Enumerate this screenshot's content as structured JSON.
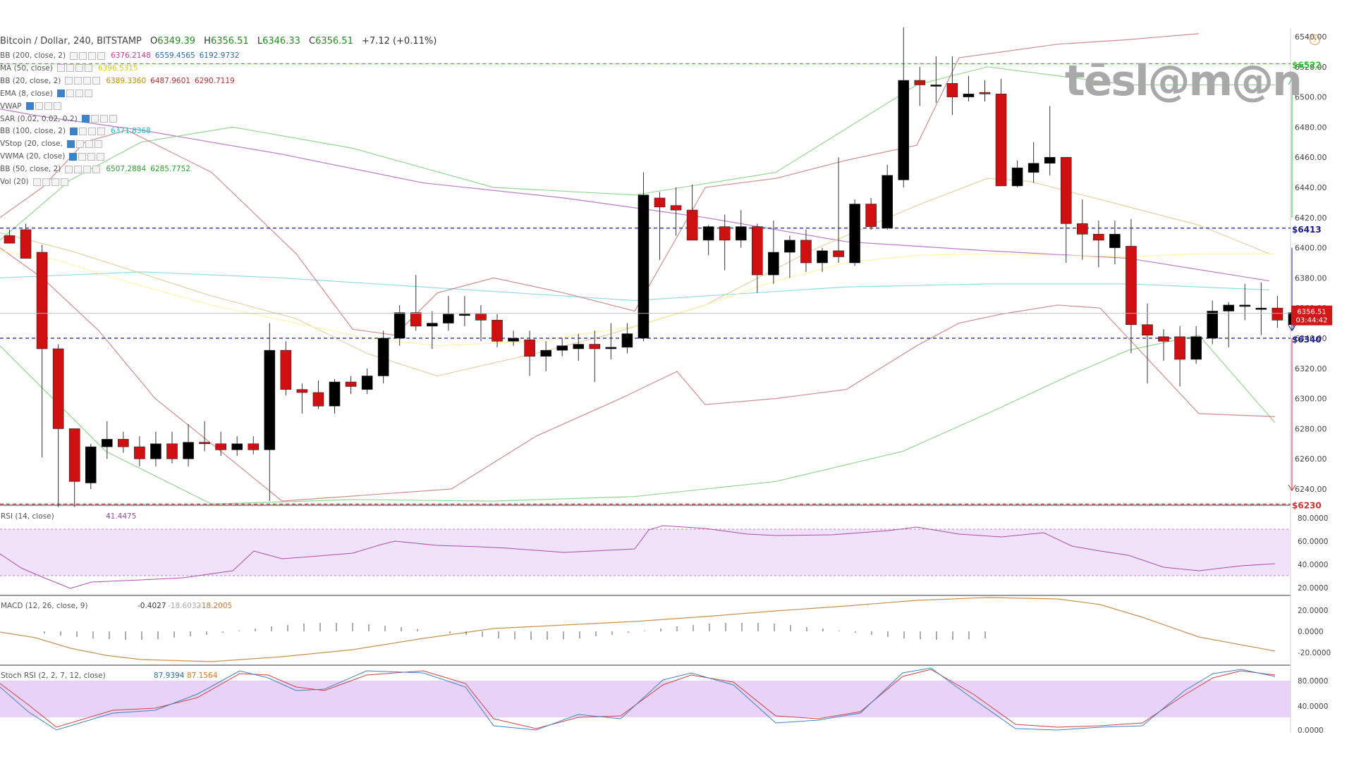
{
  "header": {
    "symbol": "Bitcoin / Dollar, 240, BITSTAMP",
    "open_label": "O",
    "open": "6349.39",
    "high_label": "H",
    "high": "6356.51",
    "low_label": "L",
    "low": "6346.33",
    "close_label": "C",
    "close": "6356.51",
    "change": "+7.12 (+0.11%)"
  },
  "indicators": [
    {
      "name": "BB (200, close, 2)",
      "values": [
        "6376.2148",
        "6559.4565",
        "6192.9732"
      ],
      "colors": [
        "#c03a8f",
        "#2d6aa8",
        "#2d6aa8"
      ]
    },
    {
      "name": "MA (50, close)",
      "values": [
        "6396.5315"
      ],
      "colors": [
        "#d9d000"
      ]
    },
    {
      "name": "BB (20, close, 2)",
      "values": [
        "6389.3360",
        "6487.9601",
        "6290.7119"
      ],
      "colors": [
        "#c98a00",
        "#b03030",
        "#b03030"
      ]
    },
    {
      "name": "EMA (8, close)",
      "values": [],
      "colors": []
    },
    {
      "name": "VWAP",
      "values": [],
      "colors": []
    },
    {
      "name": "SAR (0.02, 0.02, 0.2)",
      "values": [],
      "colors": []
    },
    {
      "name": "BB (100, close, 2)",
      "values": [
        "6371.8368"
      ],
      "colors": [
        "#2cb5c0"
      ]
    },
    {
      "name": "VStop (20, close,",
      "values": [],
      "colors": []
    },
    {
      "name": "VWMA (20, close)",
      "values": [],
      "colors": []
    },
    {
      "name": "BB (50, close, 2)",
      "values": [
        "6507.2884",
        "6285.7752"
      ],
      "colors": [
        "#2aa52a",
        "#2aa52a"
      ]
    },
    {
      "name": "Vol (20)",
      "values": [],
      "colors": []
    }
  ],
  "logo_text": "tēsl@m@n",
  "price_tags": {
    "last": "6356.51",
    "countdown": "03:44:42"
  },
  "levels": [
    {
      "label": "$6522",
      "value": 6522,
      "color": "#2fbf2f"
    },
    {
      "label": "$6413",
      "value": 6413,
      "color": "#1a1a8c"
    },
    {
      "label": "$6340",
      "value": 6340,
      "color": "#1a1a8c"
    },
    {
      "label": "$6230",
      "value": 6230,
      "color": "#d03030"
    }
  ],
  "panels": {
    "rsi": {
      "label": "RSI (14, close)",
      "value": "41.4475",
      "ticks": [
        "80.0000",
        "60.0000",
        "40.0000",
        "20.0000"
      ]
    },
    "macd": {
      "label": "MACD (12, 26, close, 9)",
      "values": [
        "-0.4027",
        "-18.6032",
        "-18.2005"
      ],
      "ticks": [
        "20.0000",
        "0.0000",
        "-20.0000"
      ]
    },
    "stoch": {
      "label": "Stoch RSI (2, 2, 7, 12, close)",
      "values": [
        "87.9394",
        "87.1564"
      ],
      "ticks": [
        "80.0000",
        "40.0000",
        "0.0000"
      ]
    }
  },
  "colors": {
    "up": "#000000",
    "down": "#d01010",
    "rsi_band": "#f0e2f8",
    "stoch_band": "#e8d2f8"
  },
  "chart_data": {
    "type": "candlestick",
    "ylim": [
      6230,
      6542
    ],
    "y_ticks": [
      6540,
      6520,
      6500,
      6480,
      6460,
      6440,
      6420,
      6400,
      6380,
      6360,
      6340,
      6320,
      6300,
      6280,
      6260,
      6240
    ],
    "y_tick_labels": [
      "6540.00",
      "6520.00",
      "6500.00",
      "6480.00",
      "6460.00",
      "6440.00",
      "6420.00",
      "6400.00",
      "6380.00",
      "6360.00",
      "6340.00",
      "6320.00",
      "6300.00",
      "6280.00",
      "6260.00",
      "6240.00"
    ],
    "candles": [
      [
        6408,
        6412,
        6404,
        6403
      ],
      [
        6412,
        6416,
        6395,
        6393
      ],
      [
        6397,
        6402,
        6261,
        6333
      ],
      [
        6333,
        6336,
        6228,
        6280
      ],
      [
        6280,
        6280,
        6228,
        6245
      ],
      [
        6244,
        6270,
        6240,
        6268
      ],
      [
        6268,
        6285,
        6260,
        6273
      ],
      [
        6273,
        6278,
        6264,
        6268
      ],
      [
        6268,
        6275,
        6255,
        6260
      ],
      [
        6260,
        6278,
        6255,
        6270
      ],
      [
        6270,
        6278,
        6257,
        6260
      ],
      [
        6260,
        6283,
        6255,
        6271
      ],
      [
        6271,
        6285,
        6265,
        6270
      ],
      [
        6270,
        6278,
        6262,
        6266
      ],
      [
        6266,
        6275,
        6262,
        6270
      ],
      [
        6270,
        6275,
        6263,
        6266
      ],
      [
        6266,
        6350,
        6232,
        6332
      ],
      [
        6332,
        6338,
        6302,
        6306
      ],
      [
        6306,
        6310,
        6290,
        6304
      ],
      [
        6304,
        6312,
        6293,
        6295
      ],
      [
        6295,
        6313,
        6290,
        6311
      ],
      [
        6311,
        6315,
        6303,
        6308
      ],
      [
        6306,
        6320,
        6303,
        6315
      ],
      [
        6315,
        6345,
        6310,
        6340
      ],
      [
        6340,
        6362,
        6335,
        6357
      ],
      [
        6357,
        6382,
        6345,
        6348
      ],
      [
        6348,
        6358,
        6333,
        6350
      ],
      [
        6350,
        6368,
        6345,
        6356
      ],
      [
        6356,
        6368,
        6348,
        6356
      ],
      [
        6356,
        6362,
        6338,
        6352
      ],
      [
        6352,
        6356,
        6334,
        6338
      ],
      [
        6338,
        6345,
        6335,
        6340
      ],
      [
        6339,
        6345,
        6315,
        6328
      ],
      [
        6328,
        6338,
        6318,
        6332
      ],
      [
        6332,
        6340,
        6328,
        6335
      ],
      [
        6333,
        6343,
        6325,
        6336
      ],
      [
        6336,
        6345,
        6311,
        6333
      ],
      [
        6333,
        6350,
        6326,
        6334
      ],
      [
        6334,
        6350,
        6330,
        6343
      ],
      [
        6340,
        6450,
        6338,
        6435
      ],
      [
        6433,
        6437,
        6392,
        6427
      ],
      [
        6428,
        6440,
        6408,
        6425
      ],
      [
        6425,
        6442,
        6406,
        6405
      ],
      [
        6405,
        6415,
        6395,
        6414
      ],
      [
        6414,
        6422,
        6385,
        6405
      ],
      [
        6405,
        6425,
        6400,
        6414
      ],
      [
        6414,
        6416,
        6370,
        6382
      ],
      [
        6382,
        6418,
        6376,
        6397
      ],
      [
        6397,
        6408,
        6380,
        6405
      ],
      [
        6405,
        6412,
        6384,
        6390
      ],
      [
        6390,
        6400,
        6384,
        6398
      ],
      [
        6398,
        6460,
        6390,
        6394
      ],
      [
        6390,
        6432,
        6388,
        6429
      ],
      [
        6429,
        6433,
        6412,
        6414
      ],
      [
        6413,
        6455,
        6412,
        6448
      ],
      [
        6445,
        6546,
        6440,
        6511
      ],
      [
        6511,
        6520,
        6494,
        6508
      ],
      [
        6508,
        6527,
        6496,
        6508
      ],
      [
        6509,
        6527,
        6488,
        6500
      ],
      [
        6500,
        6514,
        6497,
        6502
      ],
      [
        6503,
        6511,
        6497,
        6502
      ],
      [
        6502,
        6512,
        6442,
        6441
      ],
      [
        6441,
        6458,
        6440,
        6453
      ],
      [
        6450,
        6470,
        6443,
        6456
      ],
      [
        6456,
        6494,
        6448,
        6460
      ],
      [
        6460,
        6460,
        6390,
        6416
      ],
      [
        6416,
        6432,
        6392,
        6409
      ],
      [
        6409,
        6418,
        6387,
        6405
      ],
      [
        6400,
        6418,
        6389,
        6409
      ],
      [
        6401,
        6419,
        6330,
        6349
      ],
      [
        6349,
        6363,
        6310,
        6342
      ],
      [
        6341,
        6346,
        6325,
        6338
      ],
      [
        6341,
        6348,
        6308,
        6326
      ],
      [
        6326,
        6348,
        6323,
        6341
      ],
      [
        6340,
        6365,
        6336,
        6358
      ],
      [
        6358,
        6364,
        6334,
        6362
      ],
      [
        6362,
        6376,
        6352,
        6362
      ],
      [
        6360,
        6377,
        6342,
        6360
      ],
      [
        6360,
        6368,
        6347,
        6352
      ],
      [
        6349,
        6357,
        6346,
        6357
      ]
    ]
  }
}
